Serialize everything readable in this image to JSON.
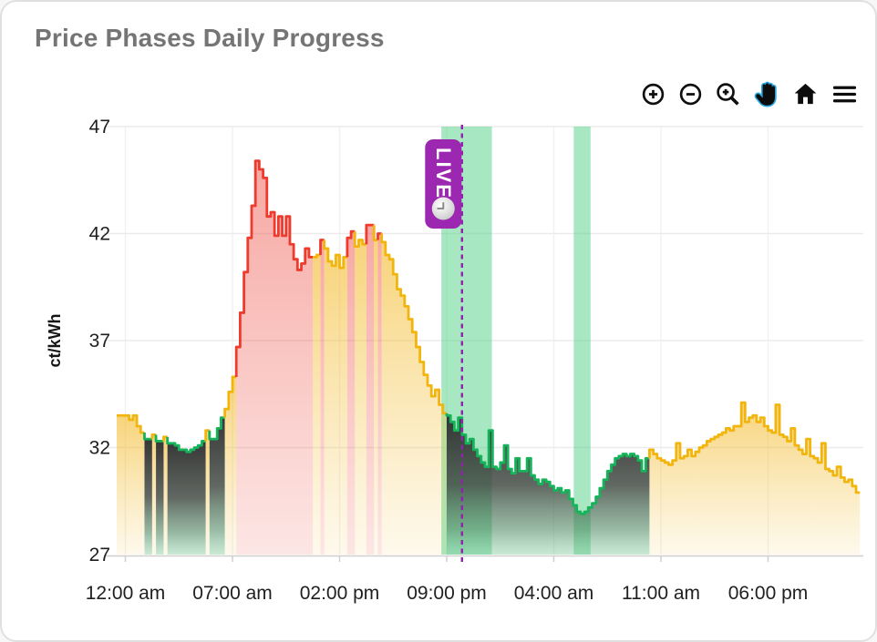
{
  "card": {
    "title": "Price Phases Daily Progress"
  },
  "toolbar": {
    "buttons": [
      {
        "id": "zoom-in",
        "icon": "zoom-in-icon"
      },
      {
        "id": "zoom-out",
        "icon": "zoom-out-icon"
      },
      {
        "id": "box-zoom",
        "icon": "magnifier-plus-icon"
      },
      {
        "id": "pan",
        "icon": "hand-icon",
        "active": true
      },
      {
        "id": "reset-view",
        "icon": "home-icon"
      },
      {
        "id": "menu",
        "icon": "hamburger-menu-icon"
      }
    ],
    "active_tool_color": "#2aa9e1"
  },
  "chart_data": {
    "type": "area",
    "subtype": "step-area-with-phases",
    "title": "Price Phases Daily Progress",
    "xlabel": "",
    "ylabel": "ct/kWh",
    "ylim": [
      27,
      47
    ],
    "y_ticks": [
      27,
      32,
      37,
      42,
      47
    ],
    "x_ticks": [
      {
        "hour": 0,
        "label": "12:00 am"
      },
      {
        "hour": 7,
        "label": "07:00 am"
      },
      {
        "hour": 14,
        "label": "02:00 pm"
      },
      {
        "hour": 21,
        "label": "09:00 pm"
      },
      {
        "hour": 28,
        "label": "04:00 am"
      },
      {
        "hour": 35,
        "label": "11:00 am"
      },
      {
        "hour": 42,
        "label": "06:00 pm"
      }
    ],
    "x_hours_range": [
      0,
      48
    ],
    "step_hours": 0.25,
    "grid": true,
    "legend": "none",
    "phase_legend": {
      "y": "normal",
      "r": "expensive",
      "g": "cheap"
    },
    "colors": {
      "normal_line": "#f2b50d",
      "expensive_line": "#ee3b2e",
      "cheap_line": "#16b45a",
      "cheap_window_band": "#50d086",
      "live_accent": "#9c27b0"
    },
    "bands": [
      {
        "from_hour": 20.65,
        "to_hour": 23.95
      },
      {
        "from_hour": 29.3,
        "to_hour": 30.4
      }
    ],
    "live_marker": {
      "hour": 22,
      "label": "LIVE"
    },
    "values_by_hour": [
      [
        33.5,
        33.3,
        33.5,
        33.0
      ],
      [
        32.7,
        32.4,
        32.4,
        32.6
      ],
      [
        32.3,
        32.3,
        32.5,
        32.2
      ],
      [
        32.2,
        32.1,
        31.9,
        31.9
      ],
      [
        31.8,
        31.9,
        32.0,
        32.1
      ],
      [
        32.3,
        32.8,
        32.4,
        32.4
      ],
      [
        32.9,
        33.4,
        33.8,
        34.6
      ],
      [
        35.3,
        36.7,
        38.3,
        40.2
      ],
      [
        41.8,
        43.3,
        45.4,
        45.0
      ],
      [
        44.6,
        42.8,
        43.0,
        41.9
      ],
      [
        42.8,
        41.9,
        42.8,
        41.5
      ],
      [
        40.8,
        40.3,
        40.6,
        41.3
      ],
      [
        40.9,
        40.9,
        41.0,
        41.7
      ],
      [
        41.3,
        40.7,
        40.5,
        41.0
      ],
      [
        40.4,
        40.9,
        41.8,
        42.1
      ],
      [
        41.4,
        41.7,
        41.5,
        42.4
      ],
      [
        42.4,
        41.7,
        42.0,
        41.6
      ],
      [
        41.0,
        40.8,
        40.1,
        39.4
      ],
      [
        39.1,
        38.6,
        38.0,
        37.4
      ],
      [
        36.7,
        36.0,
        35.4,
        34.9
      ],
      [
        34.4,
        34.7,
        34.0,
        33.6
      ],
      [
        33.5,
        33.2,
        32.8,
        33.4
      ],
      [
        32.6,
        32.2,
        32.4,
        31.9
      ],
      [
        31.6,
        31.3,
        31.1,
        32.8
      ],
      [
        31.1,
        31.0,
        31.3,
        32.1
      ],
      [
        31.0,
        30.8,
        31.5,
        30.9
      ],
      [
        30.9,
        31.5,
        30.7,
        30.5
      ],
      [
        30.3,
        30.5,
        30.4,
        30.2
      ],
      [
        30.0,
        30.1,
        29.9,
        30.0
      ],
      [
        29.6,
        29.3,
        29.0,
        28.9
      ],
      [
        29.0,
        29.2,
        29.4,
        29.7
      ],
      [
        30.1,
        30.5,
        30.9,
        31.2
      ],
      [
        31.5,
        31.6,
        31.7,
        31.6
      ],
      [
        31.7,
        31.6,
        31.4,
        30.9
      ],
      [
        31.5,
        31.9,
        31.7,
        31.5
      ],
      [
        31.4,
        31.3,
        31.2,
        31.4
      ],
      [
        32.2,
        31.5,
        31.6,
        31.9
      ],
      [
        31.6,
        31.8,
        32.0,
        32.1
      ],
      [
        32.3,
        32.4,
        32.5,
        32.6
      ],
      [
        32.7,
        32.9,
        32.8,
        33.0
      ],
      [
        33.0,
        34.1,
        33.2,
        33.4
      ],
      [
        33.5,
        33.2,
        33.4,
        33.0
      ],
      [
        32.8,
        32.7,
        34.0,
        32.6
      ],
      [
        32.5,
        32.3,
        32.9,
        32.1
      ],
      [
        31.9,
        31.7,
        32.4,
        31.6
      ],
      [
        31.5,
        31.3,
        32.2,
        31.0
      ],
      [
        30.9,
        30.7,
        31.1,
        30.6
      ],
      [
        30.4,
        30.5,
        30.2,
        29.9
      ]
    ],
    "phases_by_hour": [
      "yyyy",
      "yggy",
      "ggyg",
      "gggg",
      "gggg",
      "gygg",
      "ggyy",
      "yrrr",
      "rrrr",
      "rrrr",
      "rrrr",
      "rrrr",
      "ryyr",
      "yyyy",
      "yyrr",
      "yyyr",
      "ryry",
      "yyyy",
      "yyyy",
      "yyyy",
      "yyyy",
      "gggg",
      "gggg",
      "gggg",
      "gggg",
      "gggg",
      "gggg",
      "gggg",
      "gggg",
      "gggg",
      "gggg",
      "gggg",
      "gggg",
      "gggg",
      "gyyy",
      "yyyy",
      "yyyy",
      "yyyy",
      "yyyy",
      "yyyy",
      "yyyy",
      "yyyy",
      "yyyy",
      "yyyy",
      "yyyy",
      "yyyy",
      "yyyy",
      "yyyy"
    ]
  }
}
